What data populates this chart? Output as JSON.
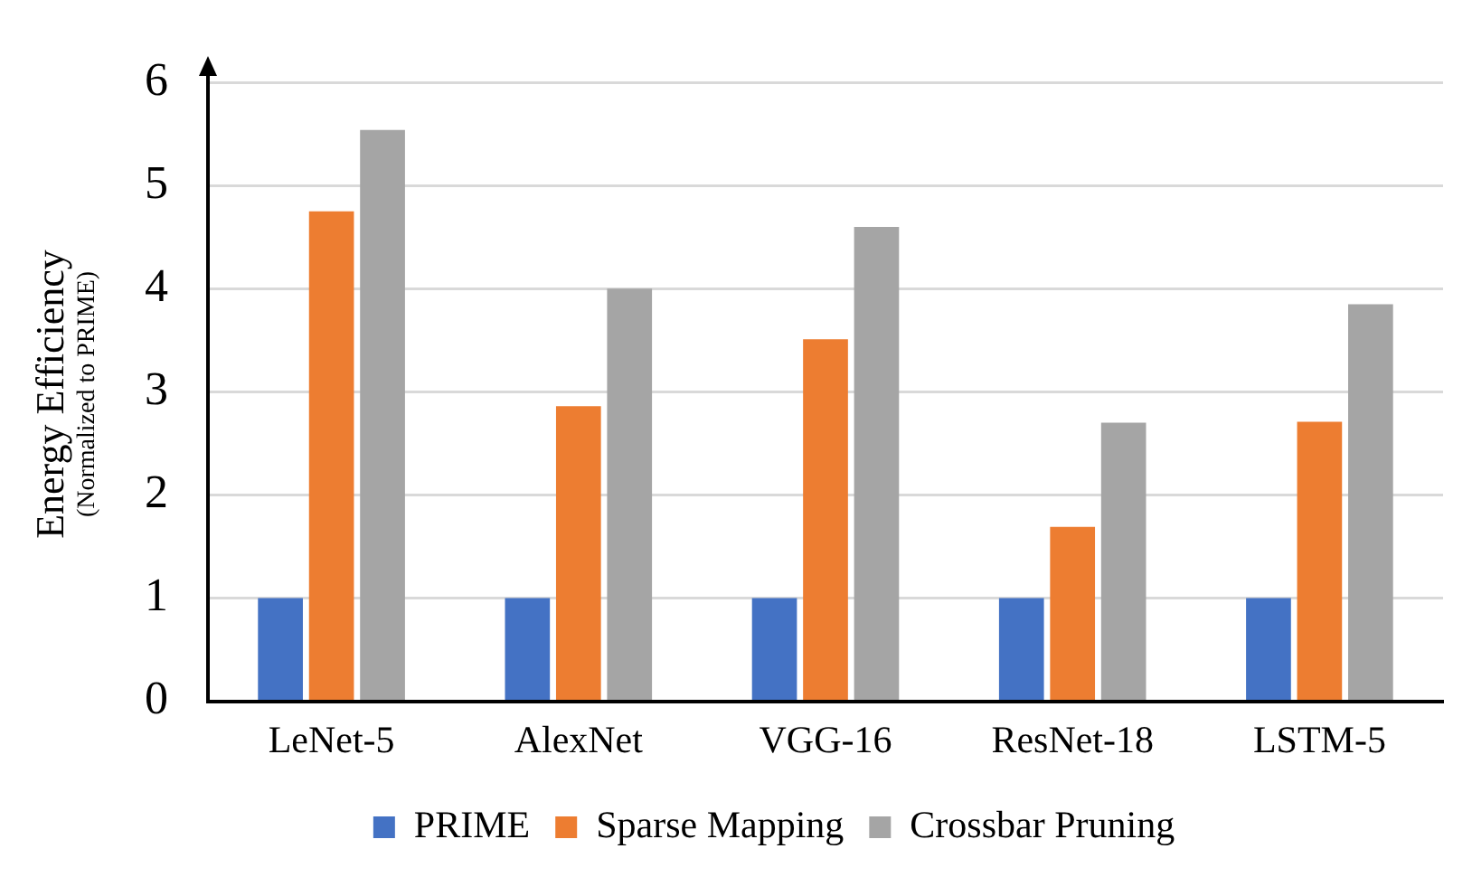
{
  "chart_data": {
    "type": "bar",
    "ylabel": "Energy Efficiency\n(Normalized to PRIME)",
    "categories": [
      "LeNet-5",
      "AlexNet",
      "VGG-16",
      "ResNet-18",
      "LSTM-5"
    ],
    "series": [
      {
        "name": "PRIME",
        "color": "#4472c4",
        "values": [
          1,
          1,
          1,
          1,
          1
        ]
      },
      {
        "name": "Sparse Mapping",
        "color": "#ed7d31",
        "values": [
          4.75,
          2.86,
          3.51,
          1.69,
          2.71
        ]
      },
      {
        "name": "Crossbar Pruning",
        "color": "#a5a5a5",
        "values": [
          5.54,
          4.0,
          4.6,
          2.7,
          3.85
        ]
      }
    ],
    "ylim": [
      0,
      6
    ],
    "yticks": [
      0,
      1,
      2,
      3,
      4,
      5,
      6
    ],
    "grid": "y",
    "legend": "bottom"
  }
}
